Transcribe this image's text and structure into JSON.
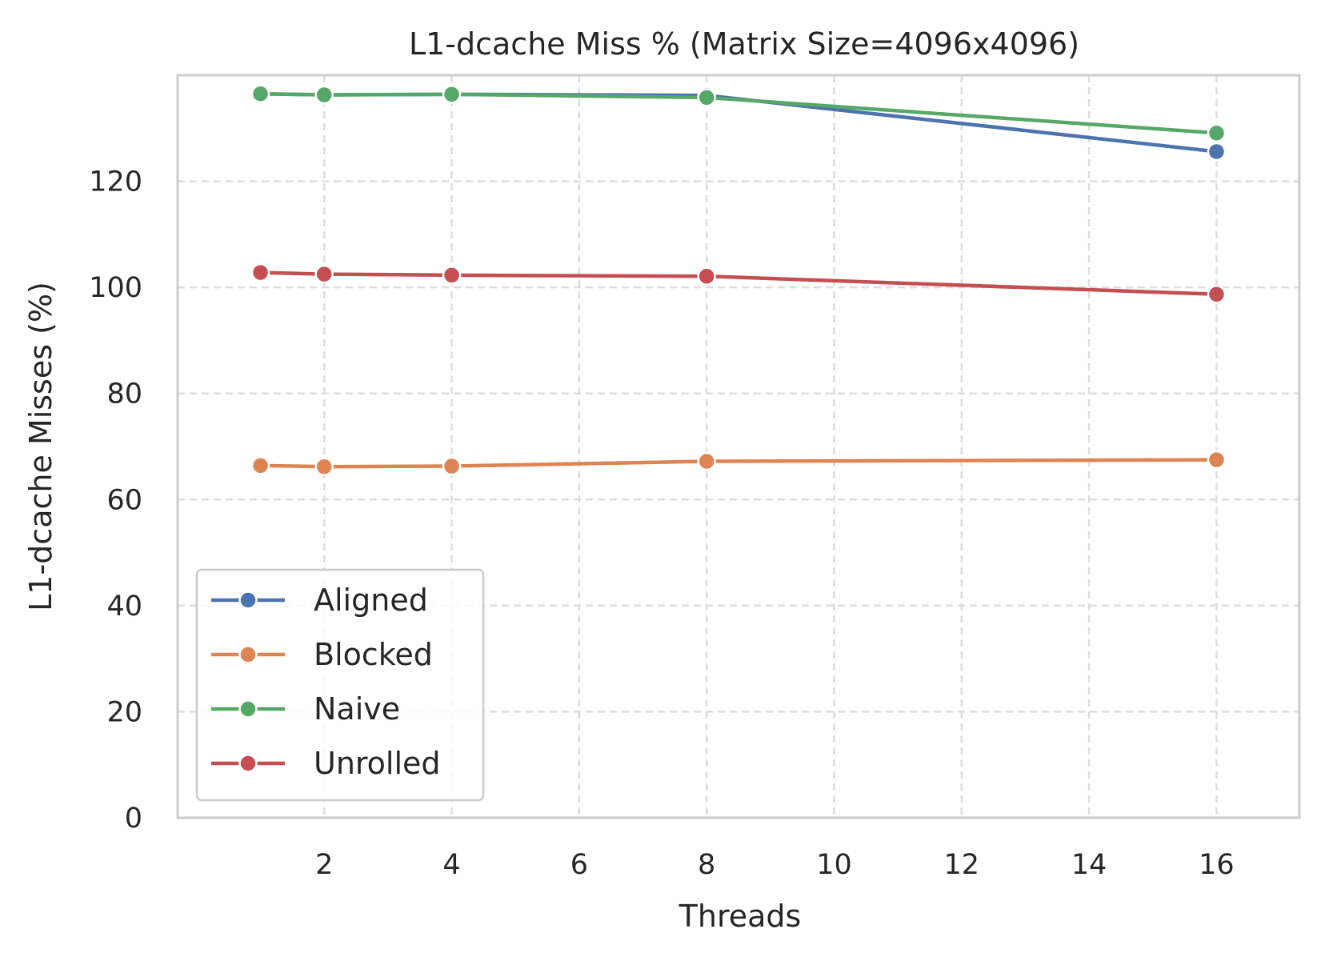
{
  "chart_data": {
    "type": "line",
    "title": "L1-dcache Miss % (Matrix Size=4096x4096)",
    "xlabel": "Threads",
    "ylabel": "L1-dcache Misses (%)",
    "x": [
      1,
      2,
      4,
      8,
      16
    ],
    "xlim": [
      -0.3,
      17.3
    ],
    "ylim": [
      0,
      140
    ],
    "xticks": [
      2,
      4,
      6,
      8,
      10,
      12,
      14,
      16
    ],
    "yticks": [
      0,
      20,
      40,
      60,
      80,
      100,
      120
    ],
    "grid": true,
    "legend_position": "lower-left",
    "series": [
      {
        "name": "Aligned",
        "color": "#4c72b0",
        "values": [
          136.5,
          136.3,
          136.4,
          136.2,
          125.6
        ]
      },
      {
        "name": "Blocked",
        "color": "#dd8452",
        "values": [
          66.4,
          66.2,
          66.3,
          67.2,
          67.5
        ]
      },
      {
        "name": "Naive",
        "color": "#55a868",
        "values": [
          136.5,
          136.3,
          136.4,
          135.8,
          129.1
        ]
      },
      {
        "name": "Unrolled",
        "color": "#c44e52",
        "values": [
          102.8,
          102.5,
          102.3,
          102.1,
          98.7
        ]
      }
    ]
  }
}
